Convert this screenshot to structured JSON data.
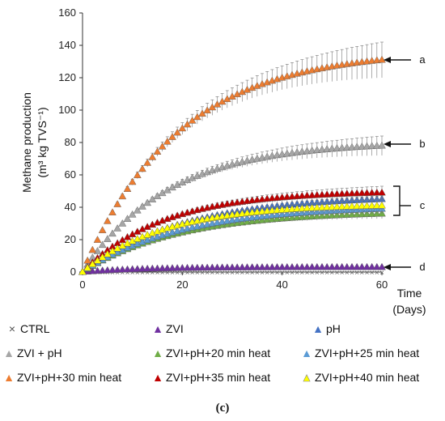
{
  "chart_data": {
    "type": "line",
    "ylabel_line1": "Methane production",
    "ylabel_line2": "(m³ kg TVS⁻¹)",
    "xlabel_line1": "Time",
    "xlabel_line2": "(Days)",
    "xlim": [
      0,
      60
    ],
    "ylim": [
      0,
      160
    ],
    "xticks": [
      0,
      20,
      40,
      60
    ],
    "yticks": [
      0,
      20,
      40,
      60,
      80,
      100,
      120,
      140,
      160
    ],
    "grid": false,
    "legend_position": "bottom",
    "marker": "triangle",
    "series": [
      {
        "name": "CTRL",
        "color": "#555555",
        "marker": "cross",
        "final": 0,
        "k": 0.05,
        "err": 0
      },
      {
        "name": "ZVI",
        "color": "#7030a0",
        "final": 3,
        "k": 0.08,
        "err": 0.5
      },
      {
        "name": "pH",
        "color": "#4472c4",
        "final": 45,
        "k": 0.05,
        "err": 2
      },
      {
        "name": "ZVI + pH",
        "color": "#a6a6a6",
        "final": 78,
        "k": 0.058,
        "err": 6
      },
      {
        "name": "ZVI+pH+20 min heat",
        "color": "#70ad47",
        "final": 36,
        "k": 0.052,
        "err": 3
      },
      {
        "name": "ZVI+pH+25 min heat",
        "color": "#5b9bd5",
        "final": 39,
        "k": 0.05,
        "err": 3
      },
      {
        "name": "ZVI+pH+30 min heat",
        "color": "#ed7d31",
        "final": 131,
        "k": 0.052,
        "err": 11
      },
      {
        "name": "ZVI+pH+35 min heat",
        "color": "#c00000",
        "final": 49,
        "k": 0.062,
        "err": 4
      },
      {
        "name": "ZVI+pH+40 min heat",
        "color": "#ffff00",
        "final": 41,
        "k": 0.06,
        "err": 4
      }
    ],
    "annotations": [
      {
        "label": "a",
        "y": 131
      },
      {
        "label": "b",
        "y": 79
      },
      {
        "label": "c",
        "y": 41,
        "bracket": [
          35,
          53
        ]
      },
      {
        "label": "d",
        "y": 3
      }
    ]
  },
  "legend_symbols": {
    "cross": "×",
    "triangle": "▲"
  },
  "panel_label": "(c)"
}
